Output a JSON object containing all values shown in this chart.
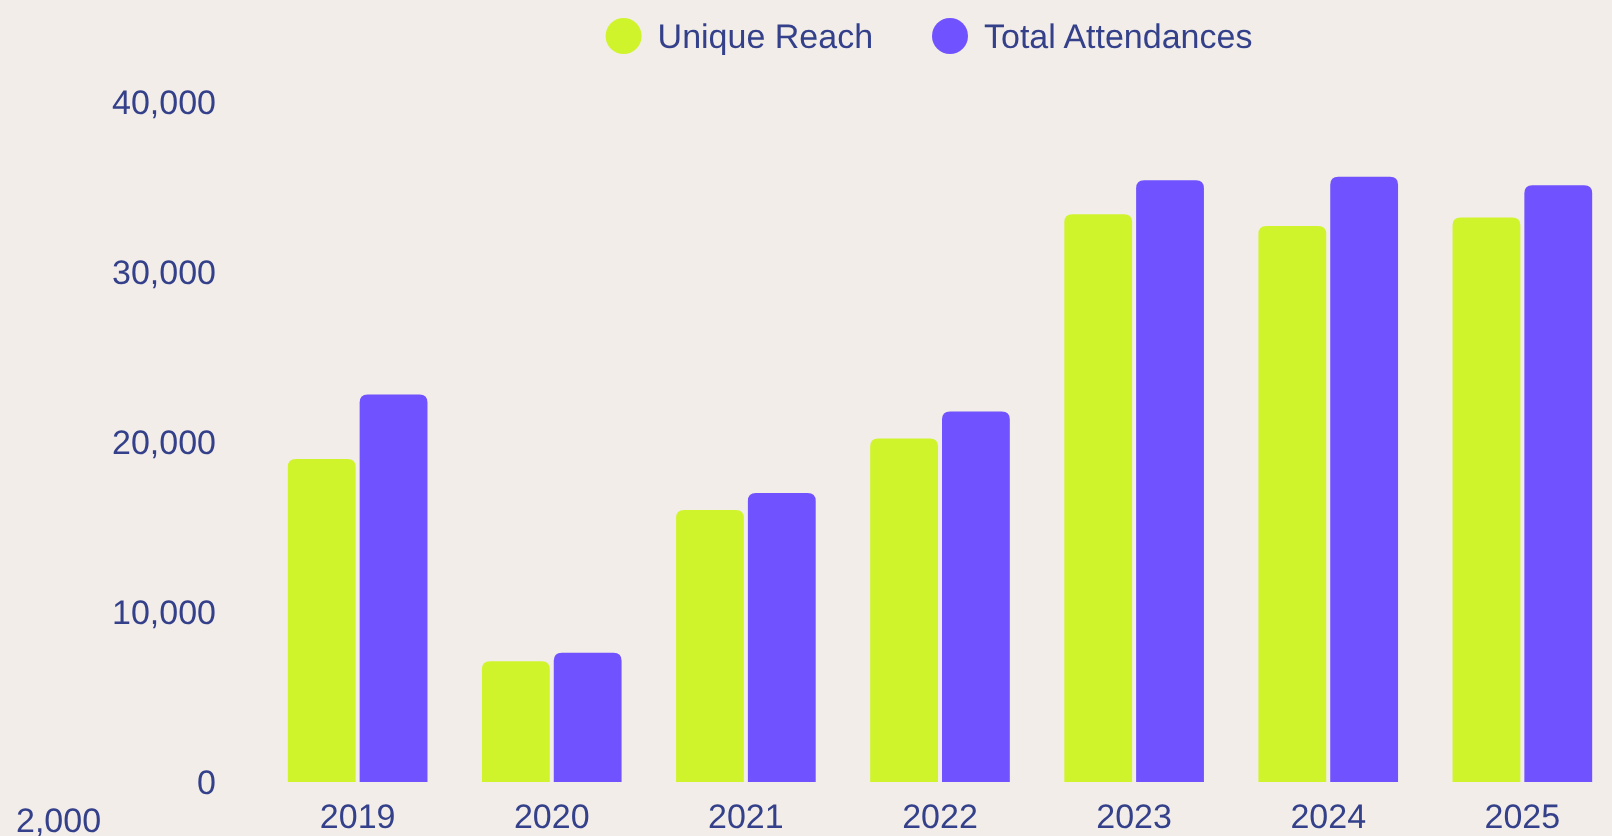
{
  "chart_data": {
    "type": "bar",
    "categories": [
      "2019",
      "2020",
      "2021",
      "2022",
      "2023",
      "2024",
      "2025"
    ],
    "series": [
      {
        "name": "Unique Reach",
        "color": "#d0f42c",
        "values": [
          19000,
          7100,
          16000,
          20200,
          33400,
          32700,
          33200
        ]
      },
      {
        "name": "Total Attendances",
        "color": "#7052ff",
        "values": [
          22800,
          7600,
          17000,
          21800,
          35400,
          35600,
          35100
        ]
      }
    ],
    "ylim": [
      0,
      40000
    ],
    "yticks": [
      {
        "value": 0,
        "label": "0"
      },
      {
        "value": 10000,
        "label": "10,000"
      },
      {
        "value": 20000,
        "label": "20,000"
      },
      {
        "value": 30000,
        "label": "30,000"
      },
      {
        "value": 40000,
        "label": "40,000"
      }
    ],
    "grid": false,
    "legend": "top",
    "annotations": [
      "2,000"
    ]
  }
}
